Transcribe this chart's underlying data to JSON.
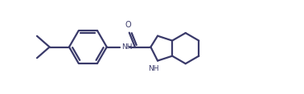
{
  "line_color": "#3a3a6a",
  "bg_color": "#ffffff",
  "line_width": 1.6,
  "figsize": [
    3.78,
    1.17
  ],
  "dpi": 100,
  "xlim": [
    0,
    10.5
  ],
  "ylim": [
    0.2,
    3.8
  ]
}
